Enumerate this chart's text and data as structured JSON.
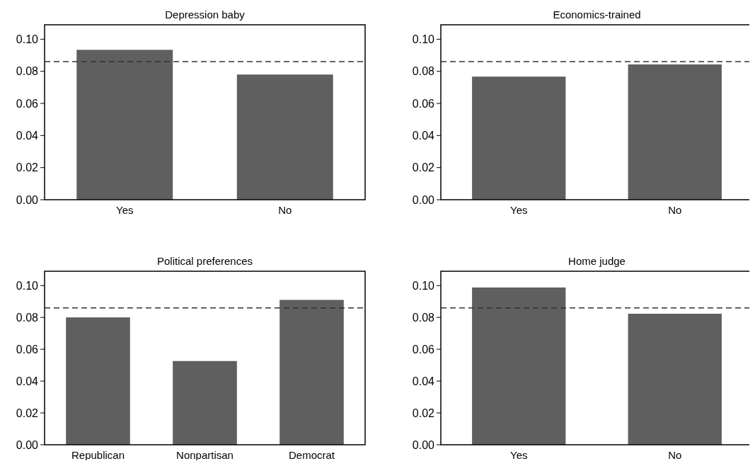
{
  "chart_data": [
    {
      "type": "bar",
      "title": "Depression baby",
      "categories": [
        "Yes",
        "No"
      ],
      "values": [
        0.0934,
        0.078
      ],
      "color": "#5f5f5f",
      "ylim": [
        0,
        0.109
      ],
      "yticks": [
        {
          "value": 0,
          "label": "0.00"
        },
        {
          "value": 0.02,
          "label": "0.02"
        },
        {
          "value": 0.04,
          "label": "0.04"
        },
        {
          "value": 0.06,
          "label": "0.06"
        },
        {
          "value": 0.08,
          "label": "0.08"
        },
        {
          "value": 0.1,
          "label": "0.10"
        }
      ],
      "grid": false,
      "ref_lines": [
        {
          "axis": "y",
          "value": 0.086,
          "color": "#333333",
          "line_style": "dashed"
        }
      ]
    },
    {
      "type": "bar",
      "title": "Economics-trained",
      "categories": [
        "Yes",
        "No"
      ],
      "values": [
        0.0767,
        0.0843
      ],
      "color": "#5f5f5f",
      "ylim": [
        0,
        0.109
      ],
      "yticks": [
        {
          "value": 0,
          "label": "0.00"
        },
        {
          "value": 0.02,
          "label": "0.02"
        },
        {
          "value": 0.04,
          "label": "0.04"
        },
        {
          "value": 0.06,
          "label": "0.06"
        },
        {
          "value": 0.08,
          "label": "0.08"
        },
        {
          "value": 0.1,
          "label": "0.10"
        }
      ],
      "grid": false,
      "ref_lines": [
        {
          "axis": "y",
          "value": 0.086,
          "color": "#333333",
          "line_style": "dashed"
        }
      ]
    },
    {
      "type": "bar",
      "title": "Political preferences",
      "categories": [
        "Republican",
        "Nonpartisan",
        "Democrat"
      ],
      "values": [
        0.08,
        0.0526,
        0.091
      ],
      "color": "#5f5f5f",
      "ylim": [
        0,
        0.109
      ],
      "yticks": [
        {
          "value": 0,
          "label": "0.00"
        },
        {
          "value": 0.02,
          "label": "0.02"
        },
        {
          "value": 0.04,
          "label": "0.04"
        },
        {
          "value": 0.06,
          "label": "0.06"
        },
        {
          "value": 0.08,
          "label": "0.08"
        },
        {
          "value": 0.1,
          "label": "0.10"
        }
      ],
      "grid": false,
      "ref_lines": [
        {
          "axis": "y",
          "value": 0.086,
          "color": "#333333",
          "line_style": "dashed"
        }
      ]
    },
    {
      "type": "bar",
      "title": "Home judge",
      "categories": [
        "Yes",
        "No"
      ],
      "values": [
        0.0988,
        0.0823
      ],
      "color": "#5f5f5f",
      "ylim": [
        0,
        0.109
      ],
      "yticks": [
        {
          "value": 0,
          "label": "0.00"
        },
        {
          "value": 0.02,
          "label": "0.02"
        },
        {
          "value": 0.04,
          "label": "0.04"
        },
        {
          "value": 0.06,
          "label": "0.06"
        },
        {
          "value": 0.08,
          "label": "0.08"
        },
        {
          "value": 0.1,
          "label": "0.10"
        }
      ],
      "grid": false,
      "ref_lines": [
        {
          "axis": "y",
          "value": 0.086,
          "color": "#333333",
          "line_style": "dashed"
        }
      ]
    }
  ]
}
